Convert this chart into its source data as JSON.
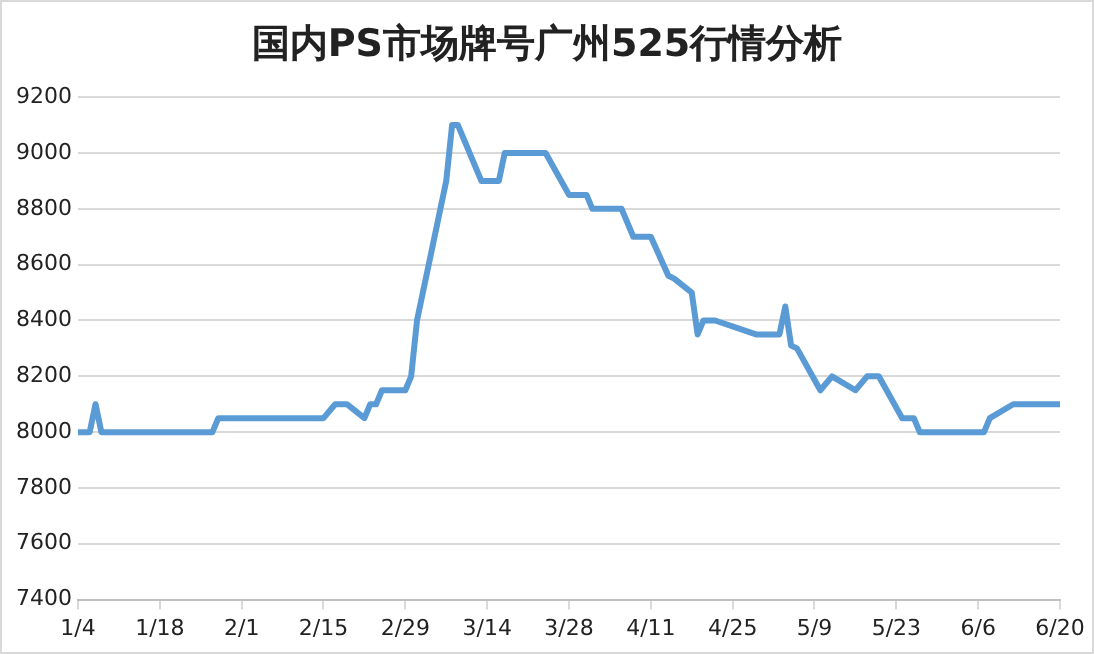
{
  "chart_data": {
    "type": "line",
    "title": "国内PS市场牌号广州525行情分析",
    "x": [
      "--01-04",
      "--01-06",
      "--01-07",
      "--01-08",
      "--01-27",
      "--01-28",
      "--02-15",
      "--02-17",
      "--02-19",
      "--02-22",
      "--02-23",
      "--02-24",
      "--02-25",
      "--02-29",
      "--03-01",
      "--03-02",
      "--03-07",
      "--03-08",
      "--03-09",
      "--03-13",
      "--03-16",
      "--03-17",
      "--03-24",
      "--03-28",
      "--03-31",
      "--04-01",
      "--04-06",
      "--04-08",
      "--04-11",
      "--04-14",
      "--04-15",
      "--04-18",
      "--04-19",
      "--04-20",
      "--04-22",
      "--04-29",
      "--05-03",
      "--05-04",
      "--05-05",
      "--05-06",
      "--05-10",
      "--05-12",
      "--05-16",
      "--05-18",
      "--05-20",
      "--05-24",
      "--05-26",
      "--05-27",
      "--06-07",
      "--06-08",
      "--06-12",
      "--06-20"
    ],
    "series": [
      {
        "color": "#5b9bd5",
        "values": [
          8000,
          8000,
          8100,
          8000,
          8000,
          8050,
          8050,
          8100,
          8100,
          8050,
          8100,
          8100,
          8150,
          8150,
          8200,
          8400,
          8900,
          9100,
          9100,
          8900,
          8900,
          9000,
          9000,
          8850,
          8850,
          8800,
          8800,
          8700,
          8700,
          8560,
          8550,
          8500,
          8350,
          8400,
          8400,
          8350,
          8350,
          8450,
          8310,
          8300,
          8150,
          8200,
          8150,
          8200,
          8200,
          8050,
          8050,
          8000,
          8000,
          8050,
          8100,
          8100
        ]
      }
    ],
    "xlim": [
      "--01-04",
      "--06-20"
    ],
    "xticks": [
      {
        "value": "--01-04",
        "label": "1/4"
      },
      {
        "value": "--01-18",
        "label": "1/18"
      },
      {
        "value": "--02-01",
        "label": "2/1"
      },
      {
        "value": "--02-15",
        "label": "2/15"
      },
      {
        "value": "--02-29",
        "label": "2/29"
      },
      {
        "value": "--03-14",
        "label": "3/14"
      },
      {
        "value": "--03-28",
        "label": "3/28"
      },
      {
        "value": "--04-11",
        "label": "4/11"
      },
      {
        "value": "--04-25",
        "label": "4/25"
      },
      {
        "value": "--05-09",
        "label": "5/9"
      },
      {
        "value": "--05-23",
        "label": "5/23"
      },
      {
        "value": "--06-06",
        "label": "6/6"
      },
      {
        "value": "--06-20",
        "label": "6/20"
      }
    ],
    "ylim": [
      7400,
      9200
    ],
    "yticks": [
      7400,
      7600,
      7800,
      8000,
      8200,
      8400,
      8600,
      8800,
      9000,
      9200
    ],
    "grid": "y",
    "legend": false,
    "marker": "none",
    "line_style": "solid"
  }
}
